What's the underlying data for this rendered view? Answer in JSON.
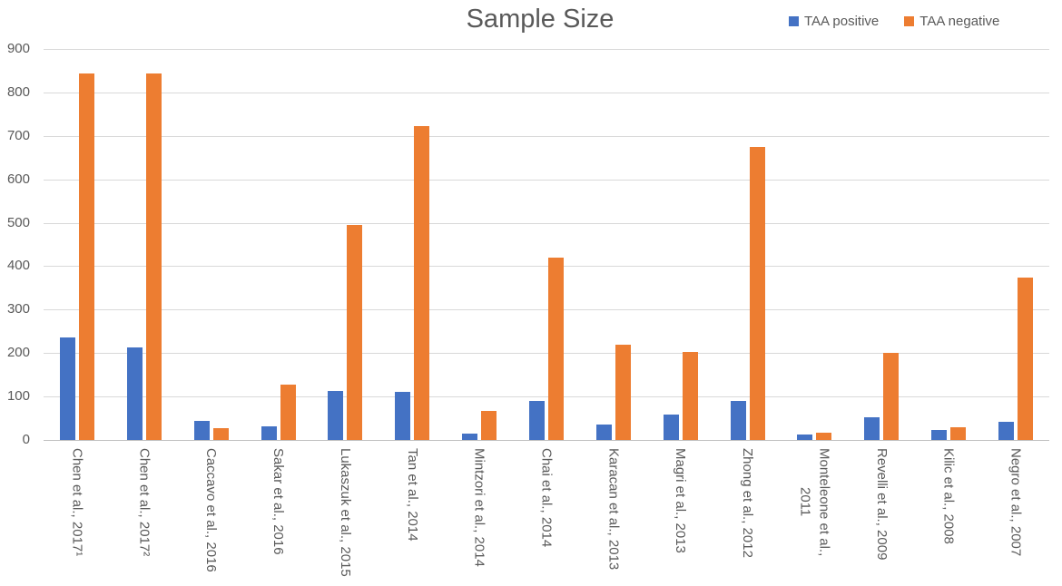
{
  "chart_data": {
    "type": "bar",
    "title": "Sample Size",
    "xlabel": "",
    "ylabel": "",
    "categories": [
      "Chen et al., 2017¹",
      "Chen et al., 2017²",
      "Caccavo et al., 2016",
      "Sakar et al., 2016",
      "Lukaszuk et al., 2015",
      "Tan et al., 2014",
      "Mintzori et al., 2014",
      "Chai et al., 2014",
      "Karacan et al., 2013",
      "Magri et al., 2013",
      "Zhong et al., 2012",
      "Monteleone et al.,\n2011",
      "Revelli et al., 2009",
      "Kilic et al., 2008",
      "Negro et al., 2007"
    ],
    "series": [
      {
        "name": "TAA positive",
        "color": "#4472C4",
        "values": [
          236,
          214,
          43,
          31,
          113,
          110,
          15,
          89,
          35,
          58,
          90,
          13,
          52,
          23,
          42
        ]
      },
      {
        "name": "TAA negative",
        "color": "#ED7D31",
        "values": [
          843,
          844,
          27,
          127,
          495,
          723,
          67,
          420,
          219,
          202,
          675,
          16,
          200,
          30,
          374
        ]
      }
    ],
    "ylim": [
      0,
      900
    ],
    "ytick_step": 100,
    "yticks": [
      "0",
      "100",
      "200",
      "300",
      "400",
      "500",
      "600",
      "700",
      "800",
      "900"
    ],
    "grid": true,
    "legend_position": "top-right"
  },
  "colors": {
    "text": "#595959",
    "gridline": "#D9D9D9",
    "axis_line": "#BFBFBF",
    "background": "#FFFFFF"
  }
}
